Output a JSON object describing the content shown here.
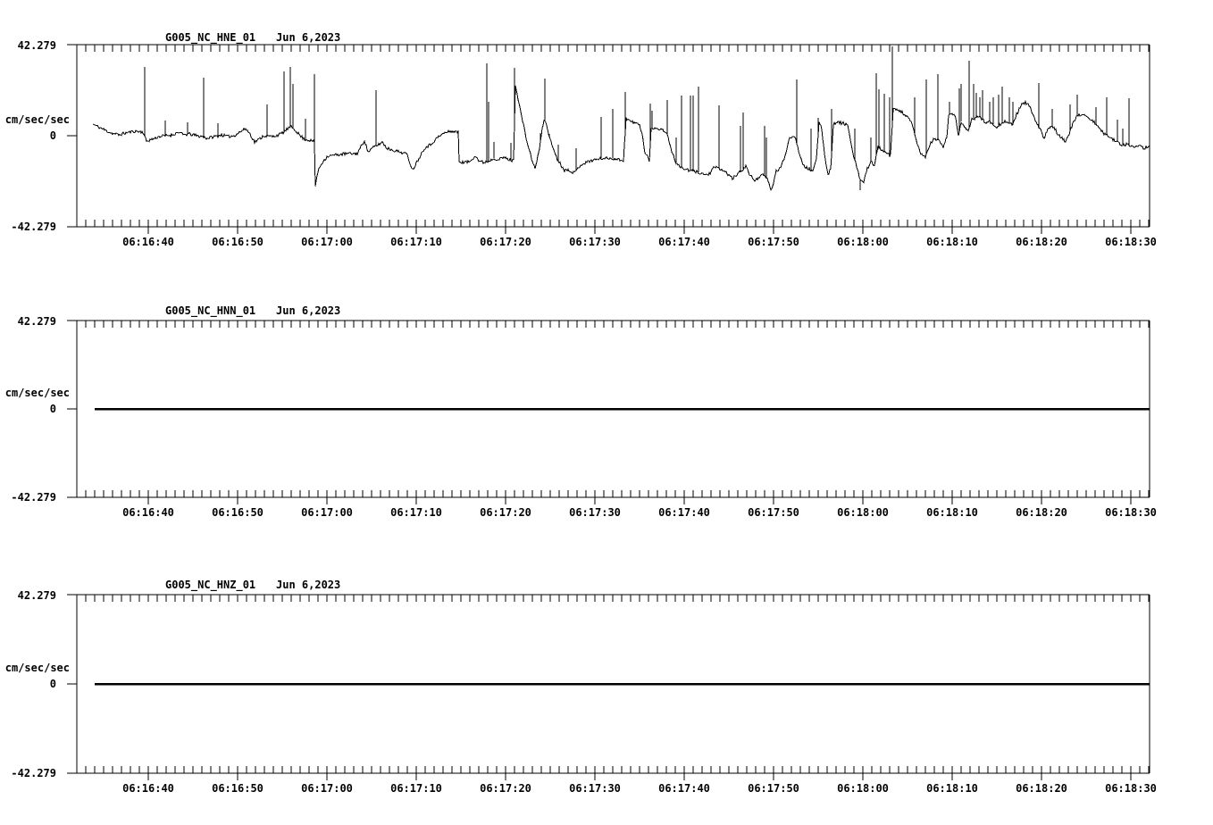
{
  "page": {
    "bg": "#ffffff",
    "fg": "#000000"
  },
  "chart_data": [
    {
      "type": "line",
      "station": "G005_NC_HNE_01",
      "date": "Jun 6,2023",
      "ylabel": "cm/sec/sec",
      "ylim": [
        -42.279,
        42.279
      ],
      "y_tick_labels": [
        "42.279",
        "0",
        "-42.279"
      ],
      "x_tick_labels": [
        "06:16:40",
        "06:16:50",
        "06:17:00",
        "06:17:10",
        "06:17:20",
        "06:17:30",
        "06:17:40",
        "06:17:50",
        "06:18:00",
        "06:18:10",
        "06:18:20",
        "06:18:30"
      ],
      "x_start_time": "06:16:32",
      "x_end_time": "06:18:32",
      "x_major_tick_s": 10,
      "x_minor_tick_s": 1,
      "grid": false,
      "legend": "none",
      "noise_amp": 0.7,
      "seed": 11,
      "stroke_px": 1,
      "baseline": [
        [
          1.8,
          5.4
        ],
        [
          2.4,
          4.1
        ],
        [
          3.2,
          2.5
        ],
        [
          3.9,
          1.2
        ],
        [
          4.7,
          0.4
        ],
        [
          5.4,
          1.2
        ],
        [
          6.4,
          2.1
        ],
        [
          7.4,
          1.7
        ],
        [
          7.8,
          -2.5
        ],
        [
          8.4,
          -1.7
        ],
        [
          9.2,
          -0.4
        ],
        [
          10,
          0
        ],
        [
          10.7,
          0.4
        ],
        [
          11.4,
          1.7
        ],
        [
          11.9,
          0.4
        ],
        [
          12.6,
          0.8
        ],
        [
          13.4,
          0
        ],
        [
          14.1,
          -0.4
        ],
        [
          14.6,
          -1.2
        ],
        [
          15.4,
          -0.4
        ],
        [
          16.2,
          0.4
        ],
        [
          16.9,
          -0.4
        ],
        [
          17.6,
          0
        ],
        [
          18.4,
          2.1
        ],
        [
          18.9,
          3.3
        ],
        [
          19.4,
          0.8
        ],
        [
          19.9,
          -2.9
        ],
        [
          20.4,
          -1.7
        ],
        [
          20.9,
          0
        ],
        [
          21.9,
          -0.4
        ],
        [
          22.6,
          0.4
        ],
        [
          23.2,
          1.7
        ],
        [
          23.6,
          3.3
        ],
        [
          24,
          4.1
        ],
        [
          24.5,
          2.5
        ],
        [
          25,
          0
        ],
        [
          25.5,
          -1.7
        ],
        [
          26.1,
          -2.1
        ],
        [
          26.6,
          -2.9
        ],
        [
          26.7,
          -23.6
        ],
        [
          26.9,
          -18.2
        ],
        [
          27.2,
          -14.5
        ],
        [
          27.6,
          -11.6
        ],
        [
          28.1,
          -9.5
        ],
        [
          28.7,
          -9.1
        ],
        [
          29.4,
          -8.7
        ],
        [
          30.4,
          -8.3
        ],
        [
          31.4,
          -8.3
        ],
        [
          32.2,
          -2.1
        ],
        [
          32.6,
          -7.5
        ],
        [
          33.2,
          -5.4
        ],
        [
          33.8,
          -4.1
        ],
        [
          34.2,
          -2.9
        ],
        [
          34.7,
          -5.8
        ],
        [
          35.4,
          -6.6
        ],
        [
          36.1,
          -7.5
        ],
        [
          36.9,
          -8.3
        ],
        [
          37.6,
          -15.8
        ],
        [
          38.2,
          -11.2
        ],
        [
          38.9,
          -5.8
        ],
        [
          39.6,
          -4.1
        ],
        [
          40.4,
          -0.8
        ],
        [
          41.1,
          1.2
        ],
        [
          41.9,
          2.1
        ],
        [
          42.7,
          1.7
        ],
        [
          42.8,
          -12
        ],
        [
          43.4,
          -12.4
        ],
        [
          44,
          -12
        ],
        [
          44.6,
          -9.1
        ],
        [
          45,
          -11.6
        ],
        [
          45.5,
          -12.4
        ],
        [
          46.2,
          -11.6
        ],
        [
          46.7,
          -10.4
        ],
        [
          47.2,
          -11.2
        ],
        [
          47.8,
          -10
        ],
        [
          48.4,
          -11.2
        ],
        [
          48.9,
          -11.6
        ],
        [
          49.1,
          24
        ],
        [
          49.5,
          15
        ],
        [
          49.9,
          7
        ],
        [
          50.3,
          -1
        ],
        [
          50.7,
          -7.5
        ],
        [
          51.1,
          -13
        ],
        [
          51.3,
          -15.5
        ],
        [
          51.5,
          -11.5
        ],
        [
          51.8,
          -6
        ],
        [
          52.1,
          3
        ],
        [
          52.3,
          7.5
        ],
        [
          52.6,
          5
        ],
        [
          53,
          -2
        ],
        [
          53.4,
          -6.5
        ],
        [
          53.8,
          -11
        ],
        [
          54.2,
          -13.5
        ],
        [
          54.6,
          -16
        ],
        [
          55.1,
          -15.8
        ],
        [
          55.7,
          -17.4
        ],
        [
          56.4,
          -13.5
        ],
        [
          57,
          -12.5
        ],
        [
          57.6,
          -11.5
        ],
        [
          58.2,
          -11
        ],
        [
          58.8,
          -10.5
        ],
        [
          59.4,
          -10.5
        ],
        [
          60,
          -10.5
        ],
        [
          60.6,
          -11
        ],
        [
          61.2,
          -11.5
        ],
        [
          61.5,
          8.3
        ],
        [
          62,
          6.6
        ],
        [
          62.6,
          5.8
        ],
        [
          63,
          5
        ],
        [
          63.3,
          0.8
        ],
        [
          63.6,
          -8.3
        ],
        [
          64,
          -10
        ],
        [
          64.1,
          -12.4
        ],
        [
          64.3,
          3.3
        ],
        [
          64.8,
          3.7
        ],
        [
          65.4,
          2.9
        ],
        [
          65.9,
          2.1
        ],
        [
          66.2,
          -0.8
        ],
        [
          66.6,
          -7
        ],
        [
          67,
          -12
        ],
        [
          67.4,
          -14.1
        ],
        [
          68,
          -15.3
        ],
        [
          68.5,
          -16.2
        ],
        [
          69.2,
          -16.6
        ],
        [
          69.9,
          -17.4
        ],
        [
          70.4,
          -18.2
        ],
        [
          70.9,
          -17.4
        ],
        [
          71.4,
          -14.5
        ],
        [
          72.2,
          -15.8
        ],
        [
          72.8,
          -17.4
        ],
        [
          73.4,
          -19.9
        ],
        [
          73.9,
          -18.2
        ],
        [
          74.9,
          -14.1
        ],
        [
          75.4,
          -18.7
        ],
        [
          75.9,
          -20.7
        ],
        [
          76.4,
          -19.1
        ],
        [
          76.9,
          -18.2
        ],
        [
          77.4,
          -20.7
        ],
        [
          77.7,
          -25.7
        ],
        [
          78,
          -21.6
        ],
        [
          78.3,
          -16.6
        ],
        [
          78.8,
          -14.9
        ],
        [
          79.3,
          -9.1
        ],
        [
          79.8,
          -0.8
        ],
        [
          80.2,
          0
        ],
        [
          80.5,
          -1.7
        ],
        [
          80.9,
          -8.3
        ],
        [
          81.4,
          -14.1
        ],
        [
          81.9,
          -15.3
        ],
        [
          82.4,
          -16.6
        ],
        [
          82.8,
          -11.2
        ],
        [
          83.1,
          6.6
        ],
        [
          83.4,
          3.3
        ],
        [
          83.7,
          -8.3
        ],
        [
          84.1,
          -18.2
        ],
        [
          84.4,
          -15.3
        ],
        [
          84.7,
          5.4
        ],
        [
          85.2,
          6.2
        ],
        [
          85.8,
          5.8
        ],
        [
          86.3,
          5
        ],
        [
          86.6,
          -1.7
        ],
        [
          86.9,
          -9.1
        ],
        [
          87.4,
          -15.3
        ],
        [
          87.7,
          -20.7
        ],
        [
          88.1,
          -21.6
        ],
        [
          88.5,
          -15.3
        ],
        [
          88.9,
          -11.6
        ],
        [
          89.3,
          -14.1
        ],
        [
          89.7,
          -5
        ],
        [
          90.2,
          -7
        ],
        [
          90.6,
          -8.3
        ],
        [
          91.1,
          -9.1
        ],
        [
          91.4,
          12.4
        ],
        [
          91.9,
          12
        ],
        [
          92.4,
          10.8
        ],
        [
          92.9,
          9.1
        ],
        [
          93.4,
          6.2
        ],
        [
          93.7,
          2.5
        ],
        [
          94.1,
          -4.1
        ],
        [
          94.5,
          -8.3
        ],
        [
          95,
          -10
        ],
        [
          95.5,
          -4.1
        ],
        [
          95.9,
          -1.7
        ],
        [
          96.5,
          -2.1
        ],
        [
          97,
          -5
        ],
        [
          97.4,
          -0.8
        ],
        [
          97.6,
          9.5
        ],
        [
          98,
          10.4
        ],
        [
          98.4,
          8.3
        ],
        [
          98.7,
          0
        ],
        [
          99,
          6.6
        ],
        [
          99.4,
          4.1
        ],
        [
          99.8,
          1.7
        ],
        [
          100.2,
          7.5
        ],
        [
          100.6,
          8.3
        ],
        [
          101.1,
          9.1
        ],
        [
          101.4,
          7.5
        ],
        [
          101.8,
          5.8
        ],
        [
          102.2,
          6.6
        ],
        [
          102.6,
          5.4
        ],
        [
          103,
          4.1
        ],
        [
          103.4,
          5.4
        ],
        [
          103.9,
          6.6
        ],
        [
          104.4,
          5.8
        ],
        [
          104.8,
          5
        ],
        [
          105.2,
          9.9
        ],
        [
          105.7,
          14.1
        ],
        [
          106.2,
          15.3
        ],
        [
          106.6,
          14.1
        ],
        [
          107.1,
          9.1
        ],
        [
          107.4,
          6.2
        ],
        [
          107.9,
          2.5
        ],
        [
          108.3,
          -1.7
        ],
        [
          108.7,
          3.3
        ],
        [
          109.1,
          4.6
        ],
        [
          109.5,
          3.3
        ],
        [
          109.9,
          0.4
        ],
        [
          110.3,
          -0.8
        ],
        [
          110.7,
          -2.9
        ],
        [
          111.1,
          0.8
        ],
        [
          111.6,
          6.6
        ],
        [
          112,
          9.1
        ],
        [
          112.5,
          9.9
        ],
        [
          113,
          9.5
        ],
        [
          113.5,
          7.5
        ],
        [
          114,
          5.8
        ],
        [
          114.5,
          3.3
        ],
        [
          115,
          0.8
        ],
        [
          115.5,
          0
        ],
        [
          116,
          -1.7
        ],
        [
          116.5,
          -2.9
        ],
        [
          117,
          -4.1
        ],
        [
          117.5,
          -4.1
        ],
        [
          118,
          -5
        ],
        [
          118.5,
          -5.4
        ],
        [
          119,
          -5
        ],
        [
          119.5,
          -5.8
        ],
        [
          120.1,
          -4.6
        ]
      ],
      "spikes": [
        [
          7.6,
          31.9
        ],
        [
          9.9,
          7
        ],
        [
          12.4,
          6.2
        ],
        [
          14.2,
          26.9
        ],
        [
          15.8,
          5.8
        ],
        [
          21.3,
          14.5
        ],
        [
          23.2,
          29.8
        ],
        [
          23.9,
          31.9
        ],
        [
          24.2,
          24
        ],
        [
          25.6,
          7.9
        ],
        [
          26.6,
          28.6
        ],
        [
          33.5,
          21.1
        ],
        [
          45.9,
          33.6
        ],
        [
          46.1,
          15.8
        ],
        [
          46.7,
          -2.9
        ],
        [
          48.6,
          -3.3
        ],
        [
          49,
          31.5
        ],
        [
          51.9,
          1.2
        ],
        [
          52.4,
          26.5
        ],
        [
          52.9,
          0.8
        ],
        [
          53.9,
          -4.1
        ],
        [
          55.9,
          -5.8
        ],
        [
          58.7,
          8.7
        ],
        [
          60,
          12.4
        ],
        [
          61.4,
          20.3
        ],
        [
          64.2,
          14.9
        ],
        [
          64.4,
          11.6
        ],
        [
          66.1,
          16.6
        ],
        [
          67.1,
          -0.8
        ],
        [
          67.7,
          18.7
        ],
        [
          68.7,
          18.7
        ],
        [
          69,
          18.7
        ],
        [
          69.6,
          22.8
        ],
        [
          71.9,
          14.1
        ],
        [
          74.3,
          4.6
        ],
        [
          74.6,
          10.8
        ],
        [
          77,
          4.6
        ],
        [
          77.2,
          -0.8
        ],
        [
          80.6,
          26.1
        ],
        [
          82.2,
          3.3
        ],
        [
          83,
          8.3
        ],
        [
          84.5,
          12.4
        ],
        [
          87.1,
          3.3
        ],
        [
          87.7,
          -25.3
        ],
        [
          88.9,
          -0.8
        ],
        [
          89.5,
          29
        ],
        [
          89.8,
          21.6
        ],
        [
          90.4,
          19.5
        ],
        [
          91,
          17.8
        ],
        [
          91.3,
          41.5
        ],
        [
          93.8,
          17.8
        ],
        [
          95.1,
          26.1
        ],
        [
          96.4,
          28.6
        ],
        [
          97.7,
          15.8
        ],
        [
          98.8,
          22
        ],
        [
          99,
          24
        ],
        [
          99.9,
          34.8
        ],
        [
          100.4,
          24
        ],
        [
          100.7,
          19.9
        ],
        [
          101.1,
          17.8
        ],
        [
          101.4,
          21.1
        ],
        [
          102.2,
          15.8
        ],
        [
          102.6,
          17.8
        ],
        [
          103.2,
          19.1
        ],
        [
          103.6,
          22.8
        ],
        [
          104.4,
          17.8
        ],
        [
          104.8,
          15.8
        ],
        [
          107.7,
          24.5
        ],
        [
          109.2,
          12.4
        ],
        [
          111.2,
          14.5
        ],
        [
          112,
          19.1
        ],
        [
          114.1,
          13.3
        ],
        [
          115.3,
          17.8
        ],
        [
          116.5,
          7.5
        ],
        [
          117.1,
          3.3
        ],
        [
          117.8,
          17.4
        ]
      ]
    },
    {
      "type": "line",
      "station": "G005_NC_HNN_01",
      "date": "Jun 6,2023",
      "ylabel": "cm/sec/sec",
      "ylim": [
        -42.279,
        42.279
      ],
      "y_tick_labels": [
        "42.279",
        "0",
        "-42.279"
      ],
      "x_tick_labels": [
        "06:16:40",
        "06:16:50",
        "06:17:00",
        "06:17:10",
        "06:17:20",
        "06:17:30",
        "06:17:40",
        "06:17:50",
        "06:18:00",
        "06:18:10",
        "06:18:20",
        "06:18:30"
      ],
      "x_start_time": "06:16:32",
      "x_end_time": "06:18:32",
      "x_major_tick_s": 10,
      "x_minor_tick_s": 1,
      "grid": false,
      "legend": "none",
      "noise_amp": 0,
      "seed": 12,
      "stroke_px": 2.5,
      "baseline": [
        [
          2,
          0
        ],
        [
          120.1,
          0
        ]
      ],
      "spikes": []
    },
    {
      "type": "line",
      "station": "G005_NC_HNZ_01",
      "date": "Jun 6,2023",
      "ylabel": "cm/sec/sec",
      "ylim": [
        -42.279,
        42.279
      ],
      "y_tick_labels": [
        "42.279",
        "0",
        "-42.279"
      ],
      "x_tick_labels": [
        "06:16:40",
        "06:16:50",
        "06:17:00",
        "06:17:10",
        "06:17:20",
        "06:17:30",
        "06:17:40",
        "06:17:50",
        "06:18:00",
        "06:18:10",
        "06:18:20",
        "06:18:30"
      ],
      "x_start_time": "06:16:32",
      "x_end_time": "06:18:32",
      "x_major_tick_s": 10,
      "x_minor_tick_s": 1,
      "grid": false,
      "legend": "none",
      "noise_amp": 0,
      "seed": 13,
      "stroke_px": 2.5,
      "baseline": [
        [
          2,
          0
        ],
        [
          120.1,
          0
        ]
      ],
      "spikes": []
    }
  ]
}
